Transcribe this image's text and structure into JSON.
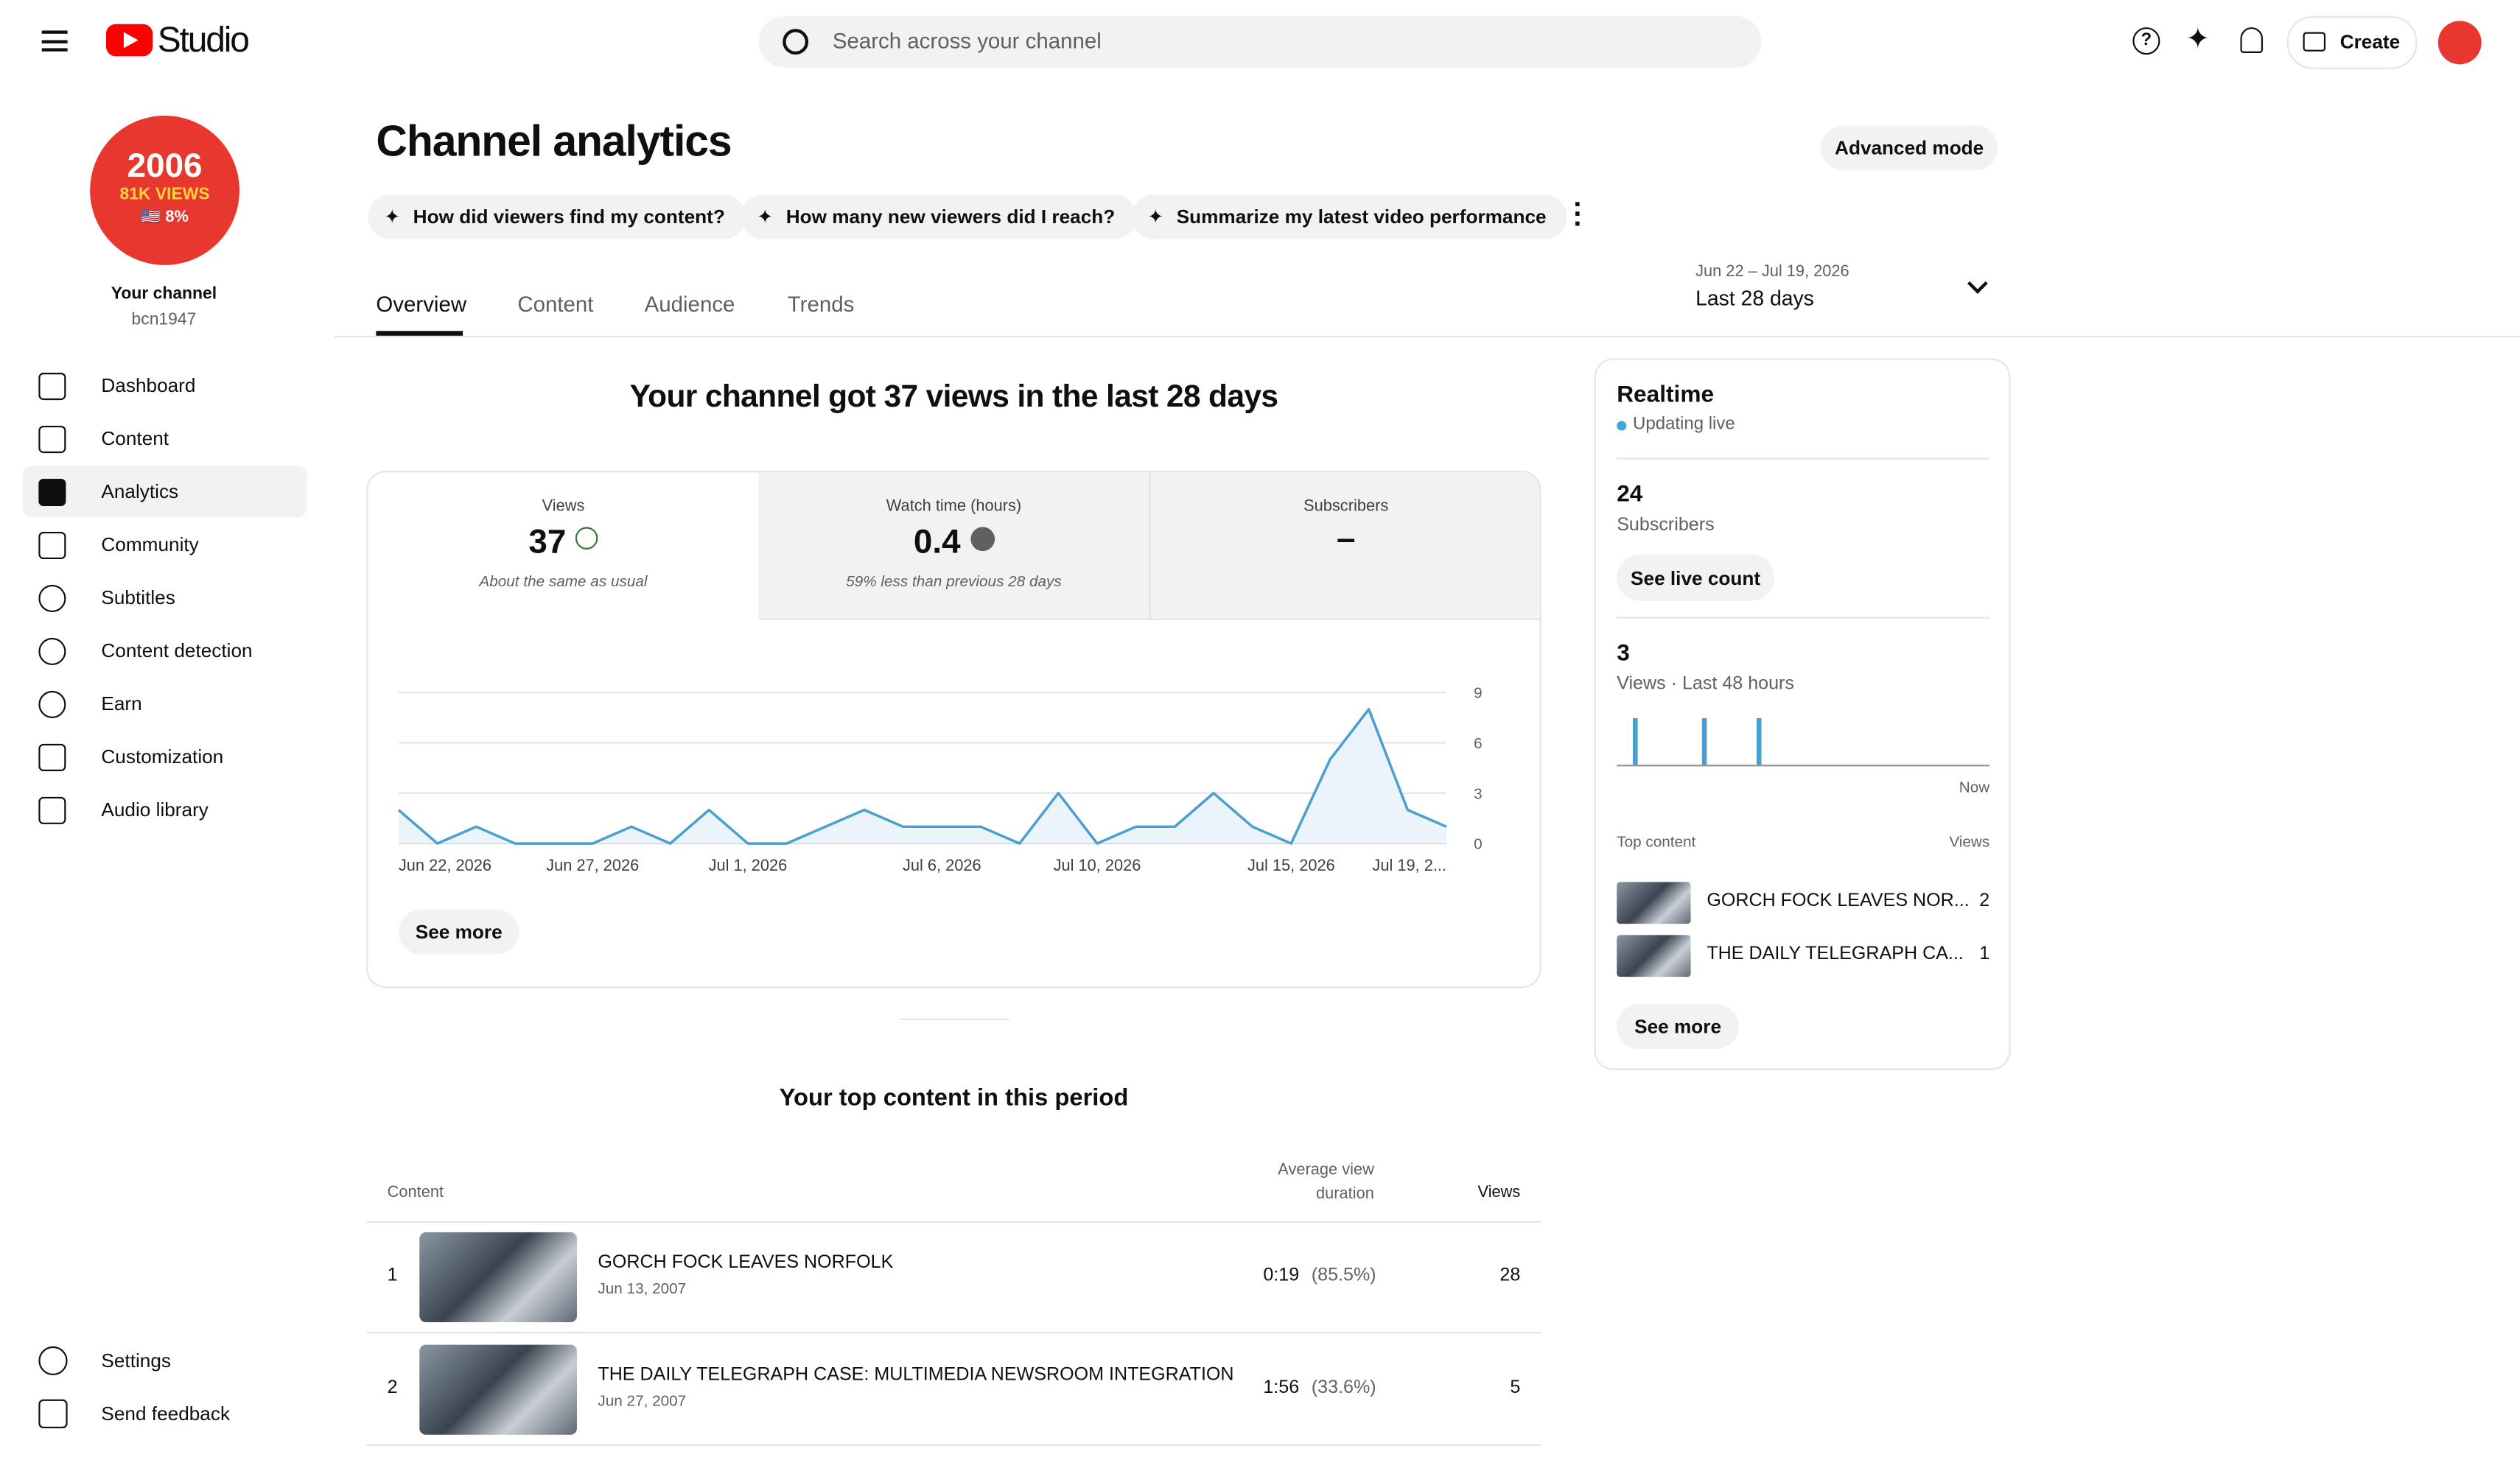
{
  "header": {
    "logo": "Studio",
    "search_placeholder": "Search across your channel",
    "create": "Create"
  },
  "sidebar": {
    "avatar": {
      "line1": "2006",
      "line2": "81K VIEWS",
      "line3": "🇺🇸 8%"
    },
    "channel_label": "Your channel",
    "handle": "bcn1947",
    "nav": [
      "Dashboard",
      "Content",
      "Analytics",
      "Community",
      "Subtitles",
      "Content detection",
      "Earn",
      "Customization",
      "Audio library"
    ],
    "footer": [
      "Settings",
      "Send feedback"
    ]
  },
  "page": {
    "title": "Channel analytics",
    "advanced_mode": "Advanced mode",
    "suggestions": [
      "How did viewers find my content?",
      "How many new viewers did I reach?",
      "Summarize my latest video performance"
    ],
    "tabs": [
      "Overview",
      "Content",
      "Audience",
      "Trends"
    ],
    "date_range": {
      "dates": "Jun 22 – Jul 19, 2026",
      "label": "Last 28 days"
    }
  },
  "overview": {
    "headline": "Your channel got 37 views in the last 28 days",
    "metrics": [
      {
        "label": "Views",
        "value": "37",
        "note": "About the same as usual"
      },
      {
        "label": "Watch time (hours)",
        "value": "0.4",
        "note": "59% less than previous 28 days"
      },
      {
        "label": "Subscribers",
        "value": "–"
      }
    ],
    "see_more": "See more"
  },
  "chart_data": {
    "type": "line",
    "categories": [
      "Jun 22, 2026",
      null,
      null,
      null,
      null,
      "Jun 27, 2026",
      null,
      null,
      null,
      "Jul 1, 2026",
      null,
      null,
      null,
      null,
      "Jul 6, 2026",
      null,
      null,
      null,
      "Jul 10, 2026",
      null,
      null,
      null,
      null,
      "Jul 15, 2026",
      null,
      null,
      null,
      "Jul 19, 2..."
    ],
    "values": [
      2,
      0,
      1,
      0,
      0,
      0,
      1,
      0,
      2,
      0,
      0,
      1,
      2,
      1,
      1,
      1,
      0,
      3,
      0,
      1,
      1,
      3,
      1,
      0,
      5,
      8,
      2,
      1
    ],
    "color": "#4a9fd1",
    "fill": "#ebf4fa",
    "ylim": [
      0,
      9
    ],
    "yticks": [
      0,
      3,
      6,
      9
    ],
    "grid": true
  },
  "top_content": {
    "title": "Your top content in this period",
    "columns": {
      "content": "Content",
      "duration": "Average view duration",
      "views": "Views"
    },
    "rows": [
      {
        "rank": "1",
        "title": "GORCH FOCK LEAVES NORFOLK",
        "date": "Jun 13, 2007",
        "duration": "0:19",
        "percent": "(85.5%)",
        "views": "28"
      },
      {
        "rank": "2",
        "title": "THE DAILY TELEGRAPH CASE: MULTIMEDIA NEWSROOM INTEGRATION",
        "date": "Jun 27, 2007",
        "duration": "1:56",
        "percent": "(33.6%)",
        "views": "5"
      }
    ]
  },
  "realtime": {
    "title": "Realtime",
    "status": "Updating live",
    "subscribers": {
      "value": "24",
      "label": "Subscribers",
      "button": "See live count"
    },
    "views": {
      "value": "3",
      "label": "Views · Last 48 hours",
      "now": "Now"
    },
    "top_content": {
      "label": "Top content",
      "views_label": "Views",
      "rows": [
        {
          "title": "GORCH FOCK LEAVES NOR...",
          "views": "2"
        },
        {
          "title": "THE DAILY TELEGRAPH CA...",
          "views": "1"
        }
      ]
    },
    "see_more": "See more"
  }
}
